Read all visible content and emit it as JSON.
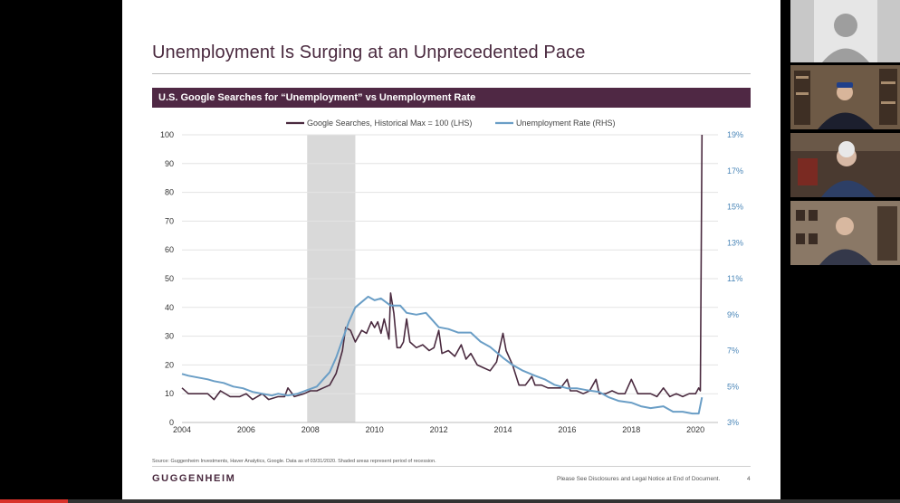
{
  "slide": {
    "title": "Unemployment Is Surging at an Unprecedented Pace",
    "chart_heading": "U.S. Google Searches for “Unemployment” vs Unemployment Rate",
    "source_note": "Source: Guggenheim Investments, Haver Analytics, Google. Data as of 03/31/2020. Shaded areas represent period of recession.",
    "logo_text": "GUGGENHEIM",
    "disclaimer": "Please See Disclosures and Legal Notice at End of Document.",
    "page_number": "4"
  },
  "participants": [
    {
      "icon": "avatar-placeholder-icon"
    },
    {
      "icon": "video-feed"
    },
    {
      "icon": "video-feed"
    },
    {
      "icon": "video-feed"
    }
  ],
  "playback": {
    "progress": 0.075
  },
  "colors": {
    "brand_purple": "#4f2844",
    "search_series": "#4a2a3f",
    "unemployment_series": "#6a9ec6",
    "recession_shade": "#d9d9d9"
  },
  "chart_data": {
    "type": "line",
    "legend": [
      "Google Searches, Historical Max = 100 (LHS)",
      "Unemployment Rate (RHS)"
    ],
    "legend_position": "top-center",
    "grid": "horizontal",
    "x_ticks": [
      "2004",
      "2006",
      "2008",
      "2010",
      "2012",
      "2014",
      "2016",
      "2018",
      "2020"
    ],
    "xlim": [
      2004,
      2020.7
    ],
    "y_left": {
      "ticks": [
        "0",
        "10",
        "20",
        "30",
        "40",
        "50",
        "60",
        "70",
        "80",
        "90",
        "100"
      ],
      "lim": [
        0,
        100
      ]
    },
    "y_right": {
      "ticks": [
        "3%",
        "5%",
        "7%",
        "9%",
        "11%",
        "13%",
        "15%",
        "17%",
        "19%"
      ],
      "lim": [
        3,
        19
      ]
    },
    "recession": [
      2007.9,
      2009.4
    ],
    "series": [
      {
        "name": "Google Searches, Historical Max = 100 (LHS)",
        "axis": "left",
        "points": [
          [
            2004.0,
            12
          ],
          [
            2004.2,
            10
          ],
          [
            2004.5,
            10
          ],
          [
            2004.8,
            10
          ],
          [
            2005.0,
            8
          ],
          [
            2005.2,
            11
          ],
          [
            2005.5,
            9
          ],
          [
            2005.8,
            9
          ],
          [
            2006.0,
            10
          ],
          [
            2006.2,
            8
          ],
          [
            2006.5,
            10
          ],
          [
            2006.7,
            8
          ],
          [
            2007.0,
            9
          ],
          [
            2007.2,
            9
          ],
          [
            2007.3,
            12
          ],
          [
            2007.5,
            9
          ],
          [
            2007.8,
            10
          ],
          [
            2008.0,
            11
          ],
          [
            2008.2,
            11
          ],
          [
            2008.4,
            12
          ],
          [
            2008.6,
            13
          ],
          [
            2008.8,
            17
          ],
          [
            2009.0,
            25
          ],
          [
            2009.1,
            33
          ],
          [
            2009.25,
            32
          ],
          [
            2009.4,
            28
          ],
          [
            2009.6,
            32
          ],
          [
            2009.75,
            31
          ],
          [
            2009.9,
            35
          ],
          [
            2010.0,
            33
          ],
          [
            2010.1,
            35
          ],
          [
            2010.2,
            31
          ],
          [
            2010.3,
            36
          ],
          [
            2010.45,
            29
          ],
          [
            2010.5,
            45
          ],
          [
            2010.6,
            38
          ],
          [
            2010.7,
            26
          ],
          [
            2010.8,
            26
          ],
          [
            2010.9,
            28
          ],
          [
            2011.0,
            36
          ],
          [
            2011.1,
            28
          ],
          [
            2011.3,
            26
          ],
          [
            2011.5,
            27
          ],
          [
            2011.7,
            25
          ],
          [
            2011.85,
            26
          ],
          [
            2012.0,
            32
          ],
          [
            2012.1,
            24
          ],
          [
            2012.3,
            25
          ],
          [
            2012.5,
            23
          ],
          [
            2012.7,
            27
          ],
          [
            2012.85,
            22
          ],
          [
            2013.0,
            24
          ],
          [
            2013.2,
            20
          ],
          [
            2013.4,
            19
          ],
          [
            2013.6,
            18
          ],
          [
            2013.8,
            21
          ],
          [
            2014.0,
            31
          ],
          [
            2014.1,
            25
          ],
          [
            2014.3,
            20
          ],
          [
            2014.5,
            13
          ],
          [
            2014.7,
            13
          ],
          [
            2014.9,
            16
          ],
          [
            2015.0,
            13
          ],
          [
            2015.2,
            13
          ],
          [
            2015.4,
            12
          ],
          [
            2015.6,
            12
          ],
          [
            2015.8,
            12
          ],
          [
            2016.0,
            15
          ],
          [
            2016.1,
            11
          ],
          [
            2016.3,
            11
          ],
          [
            2016.5,
            10
          ],
          [
            2016.7,
            11
          ],
          [
            2016.9,
            15
          ],
          [
            2017.0,
            10
          ],
          [
            2017.2,
            10
          ],
          [
            2017.4,
            11
          ],
          [
            2017.6,
            10
          ],
          [
            2017.8,
            10
          ],
          [
            2018.0,
            15
          ],
          [
            2018.2,
            10
          ],
          [
            2018.4,
            10
          ],
          [
            2018.6,
            10
          ],
          [
            2018.8,
            9
          ],
          [
            2019.0,
            12
          ],
          [
            2019.2,
            9
          ],
          [
            2019.4,
            10
          ],
          [
            2019.6,
            9
          ],
          [
            2019.8,
            10
          ],
          [
            2020.0,
            10
          ],
          [
            2020.1,
            12
          ],
          [
            2020.15,
            11
          ],
          [
            2020.2,
            100
          ]
        ]
      },
      {
        "name": "Unemployment Rate (RHS)",
        "axis": "right",
        "points": [
          [
            2004.0,
            5.7
          ],
          [
            2004.2,
            5.6
          ],
          [
            2004.5,
            5.5
          ],
          [
            2004.8,
            5.4
          ],
          [
            2005.0,
            5.3
          ],
          [
            2005.3,
            5.2
          ],
          [
            2005.6,
            5.0
          ],
          [
            2005.9,
            4.9
          ],
          [
            2006.2,
            4.7
          ],
          [
            2006.5,
            4.6
          ],
          [
            2006.8,
            4.5
          ],
          [
            2007.0,
            4.6
          ],
          [
            2007.3,
            4.5
          ],
          [
            2007.6,
            4.6
          ],
          [
            2007.9,
            4.8
          ],
          [
            2008.2,
            5.0
          ],
          [
            2008.4,
            5.4
          ],
          [
            2008.6,
            5.8
          ],
          [
            2008.8,
            6.6
          ],
          [
            2009.0,
            7.6
          ],
          [
            2009.2,
            8.6
          ],
          [
            2009.4,
            9.4
          ],
          [
            2009.6,
            9.7
          ],
          [
            2009.8,
            10.0
          ],
          [
            2010.0,
            9.8
          ],
          [
            2010.2,
            9.9
          ],
          [
            2010.5,
            9.5
          ],
          [
            2010.8,
            9.5
          ],
          [
            2011.0,
            9.1
          ],
          [
            2011.3,
            9.0
          ],
          [
            2011.6,
            9.1
          ],
          [
            2012.0,
            8.3
          ],
          [
            2012.3,
            8.2
          ],
          [
            2012.6,
            8.0
          ],
          [
            2013.0,
            8.0
          ],
          [
            2013.3,
            7.5
          ],
          [
            2013.6,
            7.2
          ],
          [
            2014.0,
            6.6
          ],
          [
            2014.3,
            6.2
          ],
          [
            2014.6,
            5.9
          ],
          [
            2015.0,
            5.6
          ],
          [
            2015.3,
            5.4
          ],
          [
            2015.6,
            5.1
          ],
          [
            2016.0,
            4.9
          ],
          [
            2016.3,
            4.9
          ],
          [
            2016.6,
            4.8
          ],
          [
            2017.0,
            4.7
          ],
          [
            2017.3,
            4.4
          ],
          [
            2017.6,
            4.2
          ],
          [
            2018.0,
            4.1
          ],
          [
            2018.3,
            3.9
          ],
          [
            2018.6,
            3.8
          ],
          [
            2019.0,
            3.9
          ],
          [
            2019.3,
            3.6
          ],
          [
            2019.6,
            3.6
          ],
          [
            2019.9,
            3.5
          ],
          [
            2020.1,
            3.5
          ],
          [
            2020.2,
            4.4
          ]
        ]
      }
    ]
  }
}
